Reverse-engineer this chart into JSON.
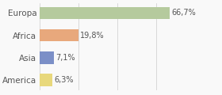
{
  "categories": [
    "Europa",
    "Africa",
    "Asia",
    "America"
  ],
  "values": [
    66.7,
    19.8,
    7.1,
    6.3
  ],
  "labels": [
    "66,7%",
    "19,8%",
    "7,1%",
    "6,3%"
  ],
  "bar_colors": [
    "#b5ca9d",
    "#e8a87c",
    "#7b8fc7",
    "#e8d87c"
  ],
  "background_color": "#f9f9f9",
  "xlim": [
    0,
    80
  ],
  "label_fontsize": 7,
  "tick_fontsize": 7.5
}
